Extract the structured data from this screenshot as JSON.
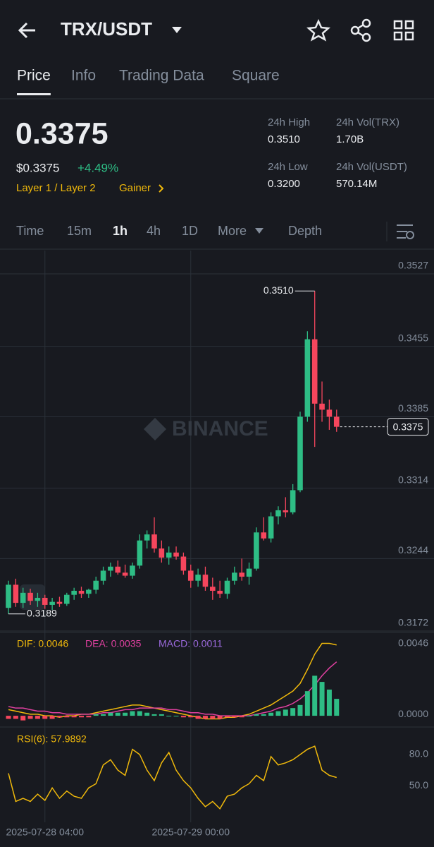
{
  "header": {
    "pair": "TRX/USDT"
  },
  "tabs": {
    "items": [
      "Price",
      "Info",
      "Trading Data",
      "Square"
    ],
    "active": 0
  },
  "price": {
    "last": "0.3375",
    "usd": "$0.3375",
    "change": "+4.49%",
    "tags": [
      "Layer 1 / Layer 2",
      "Gainer"
    ]
  },
  "stats": [
    {
      "label": "24h High",
      "value": "0.3510"
    },
    {
      "label": "24h Vol(TRX)",
      "value": "1.70B"
    },
    {
      "label": "24h Low",
      "value": "0.3200"
    },
    {
      "label": "24h Vol(USDT)",
      "value": "570.14M"
    }
  ],
  "intervals": {
    "items": [
      "Time",
      "15m",
      "1h",
      "4h",
      "1D",
      "More",
      "Depth"
    ],
    "active": 2
  },
  "chart_data": [
    {
      "type": "candlestick",
      "watermark": "BINANCE",
      "up_color": "#2ebd85",
      "down_color": "#f6465d",
      "categories": [
        null,
        null,
        null,
        null,
        null,
        "2025-07-28 04:00",
        null,
        null,
        null,
        null,
        null,
        null,
        null,
        null,
        null,
        null,
        null,
        null,
        null,
        null,
        null,
        null,
        null,
        null,
        null,
        "2025-07-29 00:00",
        null,
        null,
        null,
        null,
        null,
        null,
        null,
        null,
        null,
        null,
        null,
        null,
        null,
        null,
        null,
        null,
        null,
        null,
        null,
        null
      ],
      "open": [
        0.3195,
        0.3218,
        0.32,
        0.321,
        0.3202,
        0.3205,
        0.3198,
        0.3201,
        0.3199,
        0.3208,
        0.3212,
        0.3209,
        0.3213,
        0.3222,
        0.3232,
        0.3236,
        0.323,
        0.3227,
        0.3237,
        0.3262,
        0.3268,
        0.3254,
        0.3245,
        0.325,
        0.3246,
        0.3232,
        0.3222,
        0.3228,
        0.3216,
        0.3212,
        0.3209,
        0.3222,
        0.323,
        0.3226,
        0.3234,
        0.327,
        0.3264,
        0.3286,
        0.3292,
        0.329,
        0.3312,
        0.3385,
        0.3462,
        0.3398,
        0.3392,
        0.3385
      ],
      "high": [
        0.3222,
        0.3224,
        0.3215,
        0.3214,
        0.321,
        0.3208,
        0.3205,
        0.3206,
        0.321,
        0.3215,
        0.3216,
        0.3214,
        0.3226,
        0.3236,
        0.324,
        0.3242,
        0.3238,
        0.324,
        0.3268,
        0.3272,
        0.3285,
        0.3262,
        0.3256,
        0.3256,
        0.325,
        0.3238,
        0.3234,
        0.3236,
        0.3225,
        0.3222,
        0.3225,
        0.3236,
        0.3244,
        0.324,
        0.3275,
        0.3285,
        0.329,
        0.3296,
        0.3305,
        0.3318,
        0.339,
        0.347,
        0.351,
        0.342,
        0.3402,
        0.3392
      ],
      "low": [
        0.3189,
        0.3196,
        0.3195,
        0.3198,
        0.3196,
        0.3194,
        0.3193,
        0.3196,
        0.3197,
        0.3203,
        0.3205,
        0.3205,
        0.3209,
        0.3218,
        0.3226,
        0.3228,
        0.3225,
        0.3224,
        0.3234,
        0.3254,
        0.325,
        0.324,
        0.3238,
        0.3243,
        0.3228,
        0.3215,
        0.3216,
        0.3212,
        0.3203,
        0.3205,
        0.3204,
        0.3218,
        0.3222,
        0.3218,
        0.3232,
        0.3262,
        0.326,
        0.3278,
        0.3285,
        0.3288,
        0.331,
        0.338,
        0.3355,
        0.338,
        0.3372,
        0.337
      ],
      "close": [
        0.3218,
        0.32,
        0.321,
        0.3202,
        0.3205,
        0.3198,
        0.3201,
        0.3199,
        0.3208,
        0.3212,
        0.3209,
        0.3213,
        0.3222,
        0.3232,
        0.3236,
        0.323,
        0.3227,
        0.3237,
        0.3262,
        0.3268,
        0.3254,
        0.3245,
        0.325,
        0.3246,
        0.3232,
        0.3222,
        0.3228,
        0.3216,
        0.3212,
        0.3209,
        0.3222,
        0.323,
        0.3226,
        0.3234,
        0.327,
        0.3264,
        0.3286,
        0.3292,
        0.329,
        0.3312,
        0.3385,
        0.3462,
        0.3398,
        0.3392,
        0.3385,
        0.3375
      ],
      "ylim": [
        0.3172,
        0.3527
      ],
      "yticks": [
        0.3172,
        0.3244,
        0.3314,
        0.3385,
        0.3455,
        0.3527
      ],
      "annotations": [
        {
          "value": 0.351,
          "label": "0.3510"
        },
        {
          "value": 0.3189,
          "label": "0.3189"
        }
      ],
      "last_price": 0.3375
    },
    {
      "type": "macd",
      "ylim": [
        -0.0005,
        0.005
      ],
      "yticks": [
        {
          "value": 0,
          "label": "0.0000"
        },
        {
          "value": 0.0046,
          "label": "0.0046"
        }
      ],
      "series": [
        {
          "name": "DIF: 0.0046",
          "color": "#f0b90b",
          "values": [
            0.0004,
            0.0003,
            0.0002,
            0.0001,
            0.0001,
            0.0,
            0.0,
            -0.0001,
            0.0,
            0.0,
            0.0001,
            0.0001,
            0.0002,
            0.0003,
            0.0004,
            0.0005,
            0.0006,
            0.0007,
            0.0007,
            0.0006,
            0.0005,
            0.0004,
            0.0003,
            0.0002,
            0.0001,
            0.0,
            -0.0001,
            -0.0002,
            -0.0002,
            -0.0002,
            -0.0001,
            -0.0001,
            0.0,
            0.0001,
            0.0003,
            0.0005,
            0.0007,
            0.001,
            0.0013,
            0.0016,
            0.0021,
            0.003,
            0.004,
            0.0047,
            0.0047,
            0.0046
          ]
        },
        {
          "name": "DEA: 0.0035",
          "color": "#e040a0",
          "values": [
            0.0006,
            0.0005,
            0.0005,
            0.0004,
            0.0003,
            0.0003,
            0.0002,
            0.0002,
            0.0001,
            0.0001,
            0.0001,
            0.0001,
            0.0001,
            0.0002,
            0.0002,
            0.0003,
            0.0004,
            0.0004,
            0.0005,
            0.0005,
            0.0005,
            0.0005,
            0.0004,
            0.0004,
            0.0003,
            0.0002,
            0.0002,
            0.0001,
            0.0001,
            0.0,
            0.0,
            0.0,
            0.0,
            0.0,
            0.0001,
            0.0002,
            0.0003,
            0.0005,
            0.0006,
            0.0008,
            0.0011,
            0.0015,
            0.002,
            0.0026,
            0.0031,
            0.0035
          ]
        },
        {
          "name": "MACD: 0.0011",
          "color": "#9c6ade",
          "up_color": "#2ebd85",
          "down_color": "#f6465d",
          "values": [
            -0.0002,
            -0.0002,
            -0.0003,
            -0.0002,
            -0.0002,
            -0.0002,
            -0.0002,
            -0.0001,
            -0.0001,
            -0.0001,
            -0.0001,
            -0.0001,
            0.0001,
            0.0001,
            0.0002,
            0.0002,
            0.0002,
            0.0003,
            0.0003,
            0.0002,
            0.0001,
            0.0001,
            0.0,
            0.0,
            -0.0001,
            -0.0001,
            -0.0002,
            -0.0002,
            -0.0002,
            -0.0002,
            -0.0001,
            -0.0001,
            -0.0001,
            0.0,
            0.0001,
            0.0001,
            0.0002,
            0.0003,
            0.0004,
            0.0005,
            0.0007,
            0.0016,
            0.0026,
            0.0022,
            0.0017,
            0.0011
          ]
        }
      ]
    },
    {
      "type": "line",
      "ylim": [
        15,
        103
      ],
      "yticks": [
        {
          "value": 50,
          "label": "50.0"
        },
        {
          "value": 80,
          "label": "80.0"
        }
      ],
      "series": [
        {
          "name": "RSI(6): 57.9892",
          "color": "#f0b90b",
          "values": [
            62,
            35,
            38,
            35,
            42,
            36,
            48,
            38,
            45,
            40,
            38,
            48,
            52,
            70,
            75,
            65,
            60,
            85,
            80,
            65,
            55,
            72,
            82,
            65,
            55,
            48,
            38,
            30,
            35,
            28,
            40,
            42,
            48,
            52,
            60,
            55,
            78,
            70,
            72,
            75,
            80,
            85,
            88,
            65,
            60,
            57.9892
          ]
        }
      ]
    }
  ]
}
